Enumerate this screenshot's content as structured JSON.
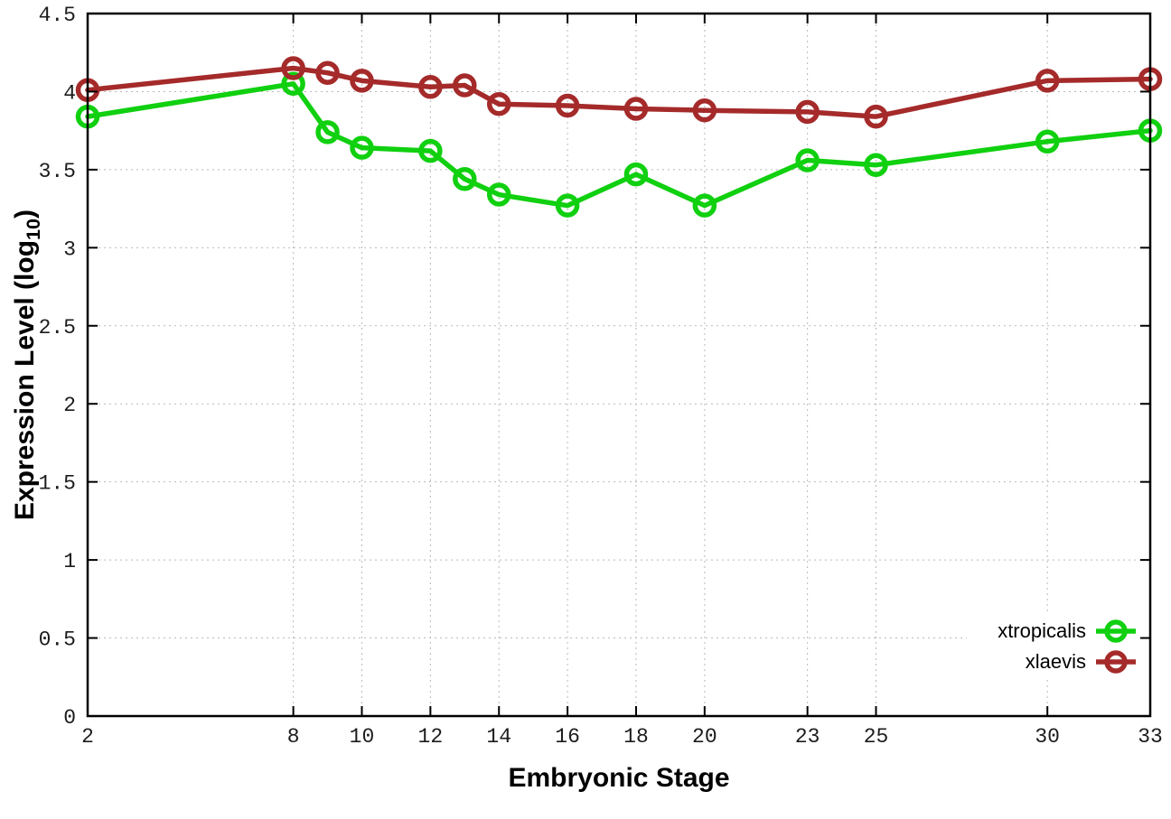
{
  "chart_data": {
    "type": "line",
    "title": "",
    "xlabel": "Embryonic Stage",
    "ylabel": "Expression Level (log10)",
    "ylabel_parts": {
      "pre": "Expression Level (log",
      "sub": "10",
      "post": ")"
    },
    "x": [
      2,
      8,
      9,
      10,
      12,
      13,
      14,
      16,
      18,
      20,
      23,
      25,
      30,
      33
    ],
    "x_ticks": [
      2,
      8,
      10,
      12,
      14,
      16,
      18,
      20,
      23,
      25,
      30,
      33
    ],
    "y_ticks": [
      0,
      0.5,
      1,
      1.5,
      2,
      2.5,
      3,
      3.5,
      4,
      4.5
    ],
    "xlim": [
      2,
      33
    ],
    "ylim": [
      0,
      4.5
    ],
    "grid": true,
    "legend_position": "inside-bottom-right",
    "grid_color": "#b9b9b9",
    "axis_color": "#000000",
    "series": [
      {
        "name": "xtropicalis",
        "color": "#10d010",
        "marker": "open-circle",
        "values": [
          3.84,
          4.05,
          3.74,
          3.64,
          3.62,
          3.44,
          3.34,
          3.27,
          3.47,
          3.27,
          3.56,
          3.53,
          3.68,
          3.75
        ]
      },
      {
        "name": "xlaevis",
        "color": "#a52a2a",
        "marker": "open-circle",
        "values": [
          4.01,
          4.15,
          4.12,
          4.07,
          4.03,
          4.04,
          3.92,
          3.91,
          3.89,
          3.88,
          3.87,
          3.84,
          4.07,
          4.08
        ]
      }
    ]
  }
}
